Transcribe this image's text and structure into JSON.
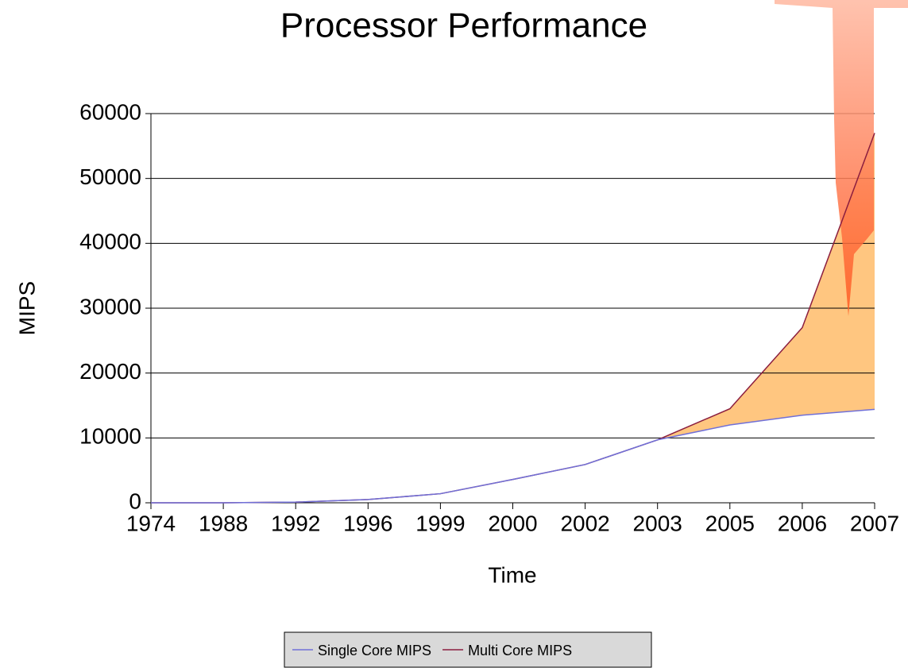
{
  "chart_data": {
    "type": "line",
    "title": "Processor Performance",
    "x_label": "Time",
    "y_label": "MIPS",
    "categories": [
      "1974",
      "1988",
      "1992",
      "1996",
      "1999",
      "2000",
      "2002",
      "2003",
      "2005",
      "2006",
      "2007"
    ],
    "series": [
      {
        "name": "Single Core MIPS",
        "color": "#7070d8",
        "values": [
          0,
          0,
          100,
          500,
          1400,
          3600,
          5900,
          9700,
          12000,
          13500,
          14400
        ]
      },
      {
        "name": "Multi Core MIPS",
        "color": "#8b1e3f",
        "values": [
          0,
          0,
          100,
          500,
          1400,
          3600,
          5900,
          9700,
          14500,
          27000,
          57000
        ]
      }
    ],
    "area_color": "#ffc680",
    "ylim": [
      0,
      60000
    ],
    "yticks": [
      0,
      10000,
      20000,
      30000,
      40000,
      50000,
      60000
    ],
    "grid": true,
    "legend": "bottom"
  }
}
